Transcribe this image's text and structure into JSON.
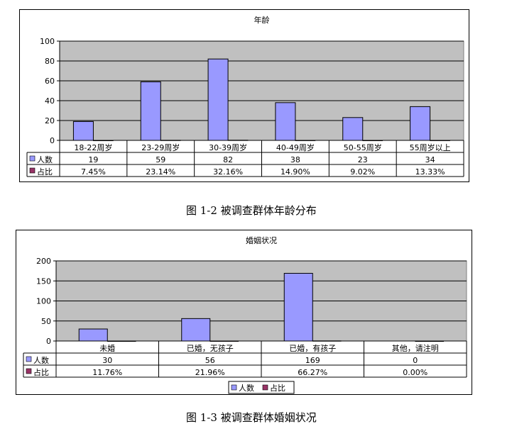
{
  "chart_data": [
    {
      "type": "bar",
      "title": "年龄",
      "categories": [
        "18-22周岁",
        "23-29周岁",
        "30-39周岁",
        "40-49周岁",
        "50-55周岁",
        "55周岁以上"
      ],
      "series": [
        {
          "name": "人数",
          "values": [
            19,
            59,
            82,
            38,
            23,
            34
          ],
          "color": "#9999ff"
        },
        {
          "name": "占比",
          "values": [
            0.0745,
            0.2314,
            0.3216,
            0.149,
            0.0902,
            0.1333
          ],
          "color": "#993366"
        }
      ],
      "table_values": [
        [
          "19",
          "59",
          "82",
          "38",
          "23",
          "34"
        ],
        [
          "7.45%",
          "23.14%",
          "32.16%",
          "14.90%",
          "9.02%",
          "13.33%"
        ]
      ],
      "ylim": [
        0,
        100
      ],
      "yticks": [
        "0",
        "20",
        "40",
        "60",
        "80",
        "100"
      ],
      "grid": true,
      "plot_background": "#c0c0c0",
      "legend": "data-table"
    },
    {
      "type": "bar",
      "title": "婚姻状况",
      "categories": [
        "未婚",
        "已婚，无孩子",
        "已婚，有孩子",
        "其他，请注明"
      ],
      "series": [
        {
          "name": "人数",
          "values": [
            30,
            56,
            169,
            0
          ],
          "color": "#9999ff"
        },
        {
          "name": "占比",
          "values": [
            0.1176,
            0.2196,
            0.6627,
            0
          ],
          "color": "#993366"
        }
      ],
      "table_values": [
        [
          "30",
          "56",
          "169",
          "0"
        ],
        [
          "11.76%",
          "21.96%",
          "66.27%",
          "0.00%"
        ]
      ],
      "ylim": [
        0,
        200
      ],
      "yticks": [
        "0",
        "50",
        "100",
        "150",
        "200"
      ],
      "grid": true,
      "plot_background": "#c0c0c0",
      "legend": "bottom"
    }
  ],
  "captions": {
    "fig1": "图 1-2  被调查群体年龄分布",
    "fig2": "图 1-3  被调查群体婚姻状况"
  }
}
